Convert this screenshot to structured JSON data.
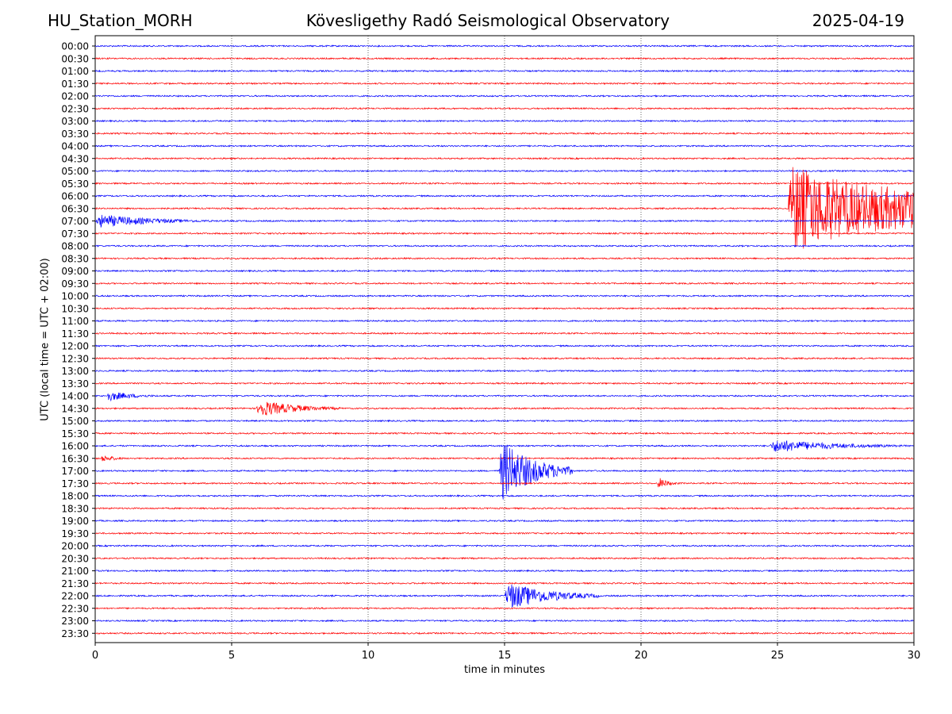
{
  "header": {
    "station": "HU_Station_MORH",
    "title": "Kövesligethy Radó Seismological Observatory",
    "date": "2025-04-19"
  },
  "chart_data": {
    "type": "line",
    "title": "Kövesligethy Radó Seismological Observatory",
    "xlabel": "time in minutes",
    "ylabel": "UTC (local time = UTC + 02:00)",
    "xlim": [
      0,
      30
    ],
    "xticks": [
      0,
      5,
      10,
      15,
      20,
      25,
      30
    ],
    "grid_x": true,
    "colors": [
      "#0000ff",
      "#ff0000"
    ],
    "rows": [
      "00:00",
      "00:30",
      "01:00",
      "01:30",
      "02:00",
      "02:30",
      "03:00",
      "03:30",
      "04:00",
      "04:30",
      "05:00",
      "05:30",
      "06:00",
      "06:30",
      "07:00",
      "07:30",
      "08:00",
      "08:30",
      "09:00",
      "09:30",
      "10:00",
      "10:30",
      "11:00",
      "11:30",
      "12:00",
      "12:30",
      "13:00",
      "13:30",
      "14:00",
      "14:30",
      "15:00",
      "15:30",
      "16:00",
      "16:30",
      "17:00",
      "17:30",
      "18:00",
      "18:30",
      "19:00",
      "19:30",
      "20:00",
      "20:30",
      "21:00",
      "21:30",
      "22:00",
      "22:30",
      "23:00",
      "23:30"
    ],
    "events": [
      {
        "row": "06:30",
        "start": 25.4,
        "end": 30,
        "amplitude": 1.0
      },
      {
        "row": "07:00",
        "start": 0,
        "end": 4.5,
        "amplitude": 0.15
      },
      {
        "row": "14:00",
        "start": 0.4,
        "end": 2.5,
        "amplitude": 0.12
      },
      {
        "row": "14:30",
        "start": 5.9,
        "end": 9,
        "amplitude": 0.2
      },
      {
        "row": "16:00",
        "start": 24.7,
        "end": 30,
        "amplitude": 0.15
      },
      {
        "row": "16:30",
        "start": 0.2,
        "end": 1.5,
        "amplitude": 0.08
      },
      {
        "row": "17:00",
        "start": 14.8,
        "end": 17.5,
        "amplitude": 0.7
      },
      {
        "row": "17:30",
        "start": 20.6,
        "end": 21.4,
        "amplitude": 0.15
      },
      {
        "row": "22:00",
        "start": 15.0,
        "end": 18.5,
        "amplitude": 0.32
      }
    ]
  }
}
